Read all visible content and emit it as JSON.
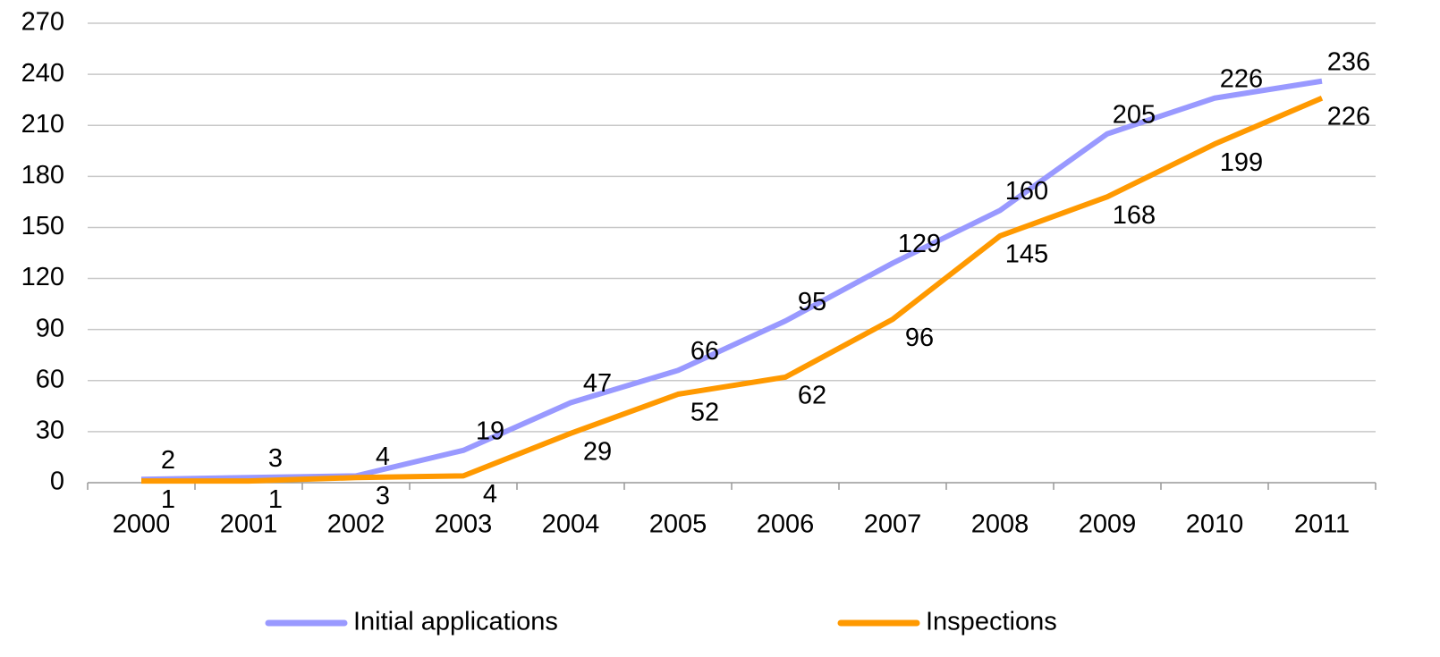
{
  "chart_data": {
    "type": "line",
    "categories": [
      "2000",
      "2001",
      "2002",
      "2003",
      "2004",
      "2005",
      "2006",
      "2007",
      "2008",
      "2009",
      "2010",
      "2011"
    ],
    "series": [
      {
        "name": "Initial applications",
        "color": "#9999ff",
        "values": [
          2,
          3,
          4,
          19,
          47,
          66,
          95,
          129,
          160,
          205,
          226,
          236
        ]
      },
      {
        "name": "Inspections",
        "color": "#ff9900",
        "values": [
          1,
          1,
          3,
          4,
          29,
          52,
          62,
          96,
          145,
          168,
          199,
          226
        ]
      }
    ],
    "ylim": [
      0,
      270
    ],
    "yticks": [
      0,
      30,
      60,
      90,
      120,
      150,
      180,
      210,
      240,
      270
    ],
    "grid": true,
    "legend": "bottom"
  }
}
